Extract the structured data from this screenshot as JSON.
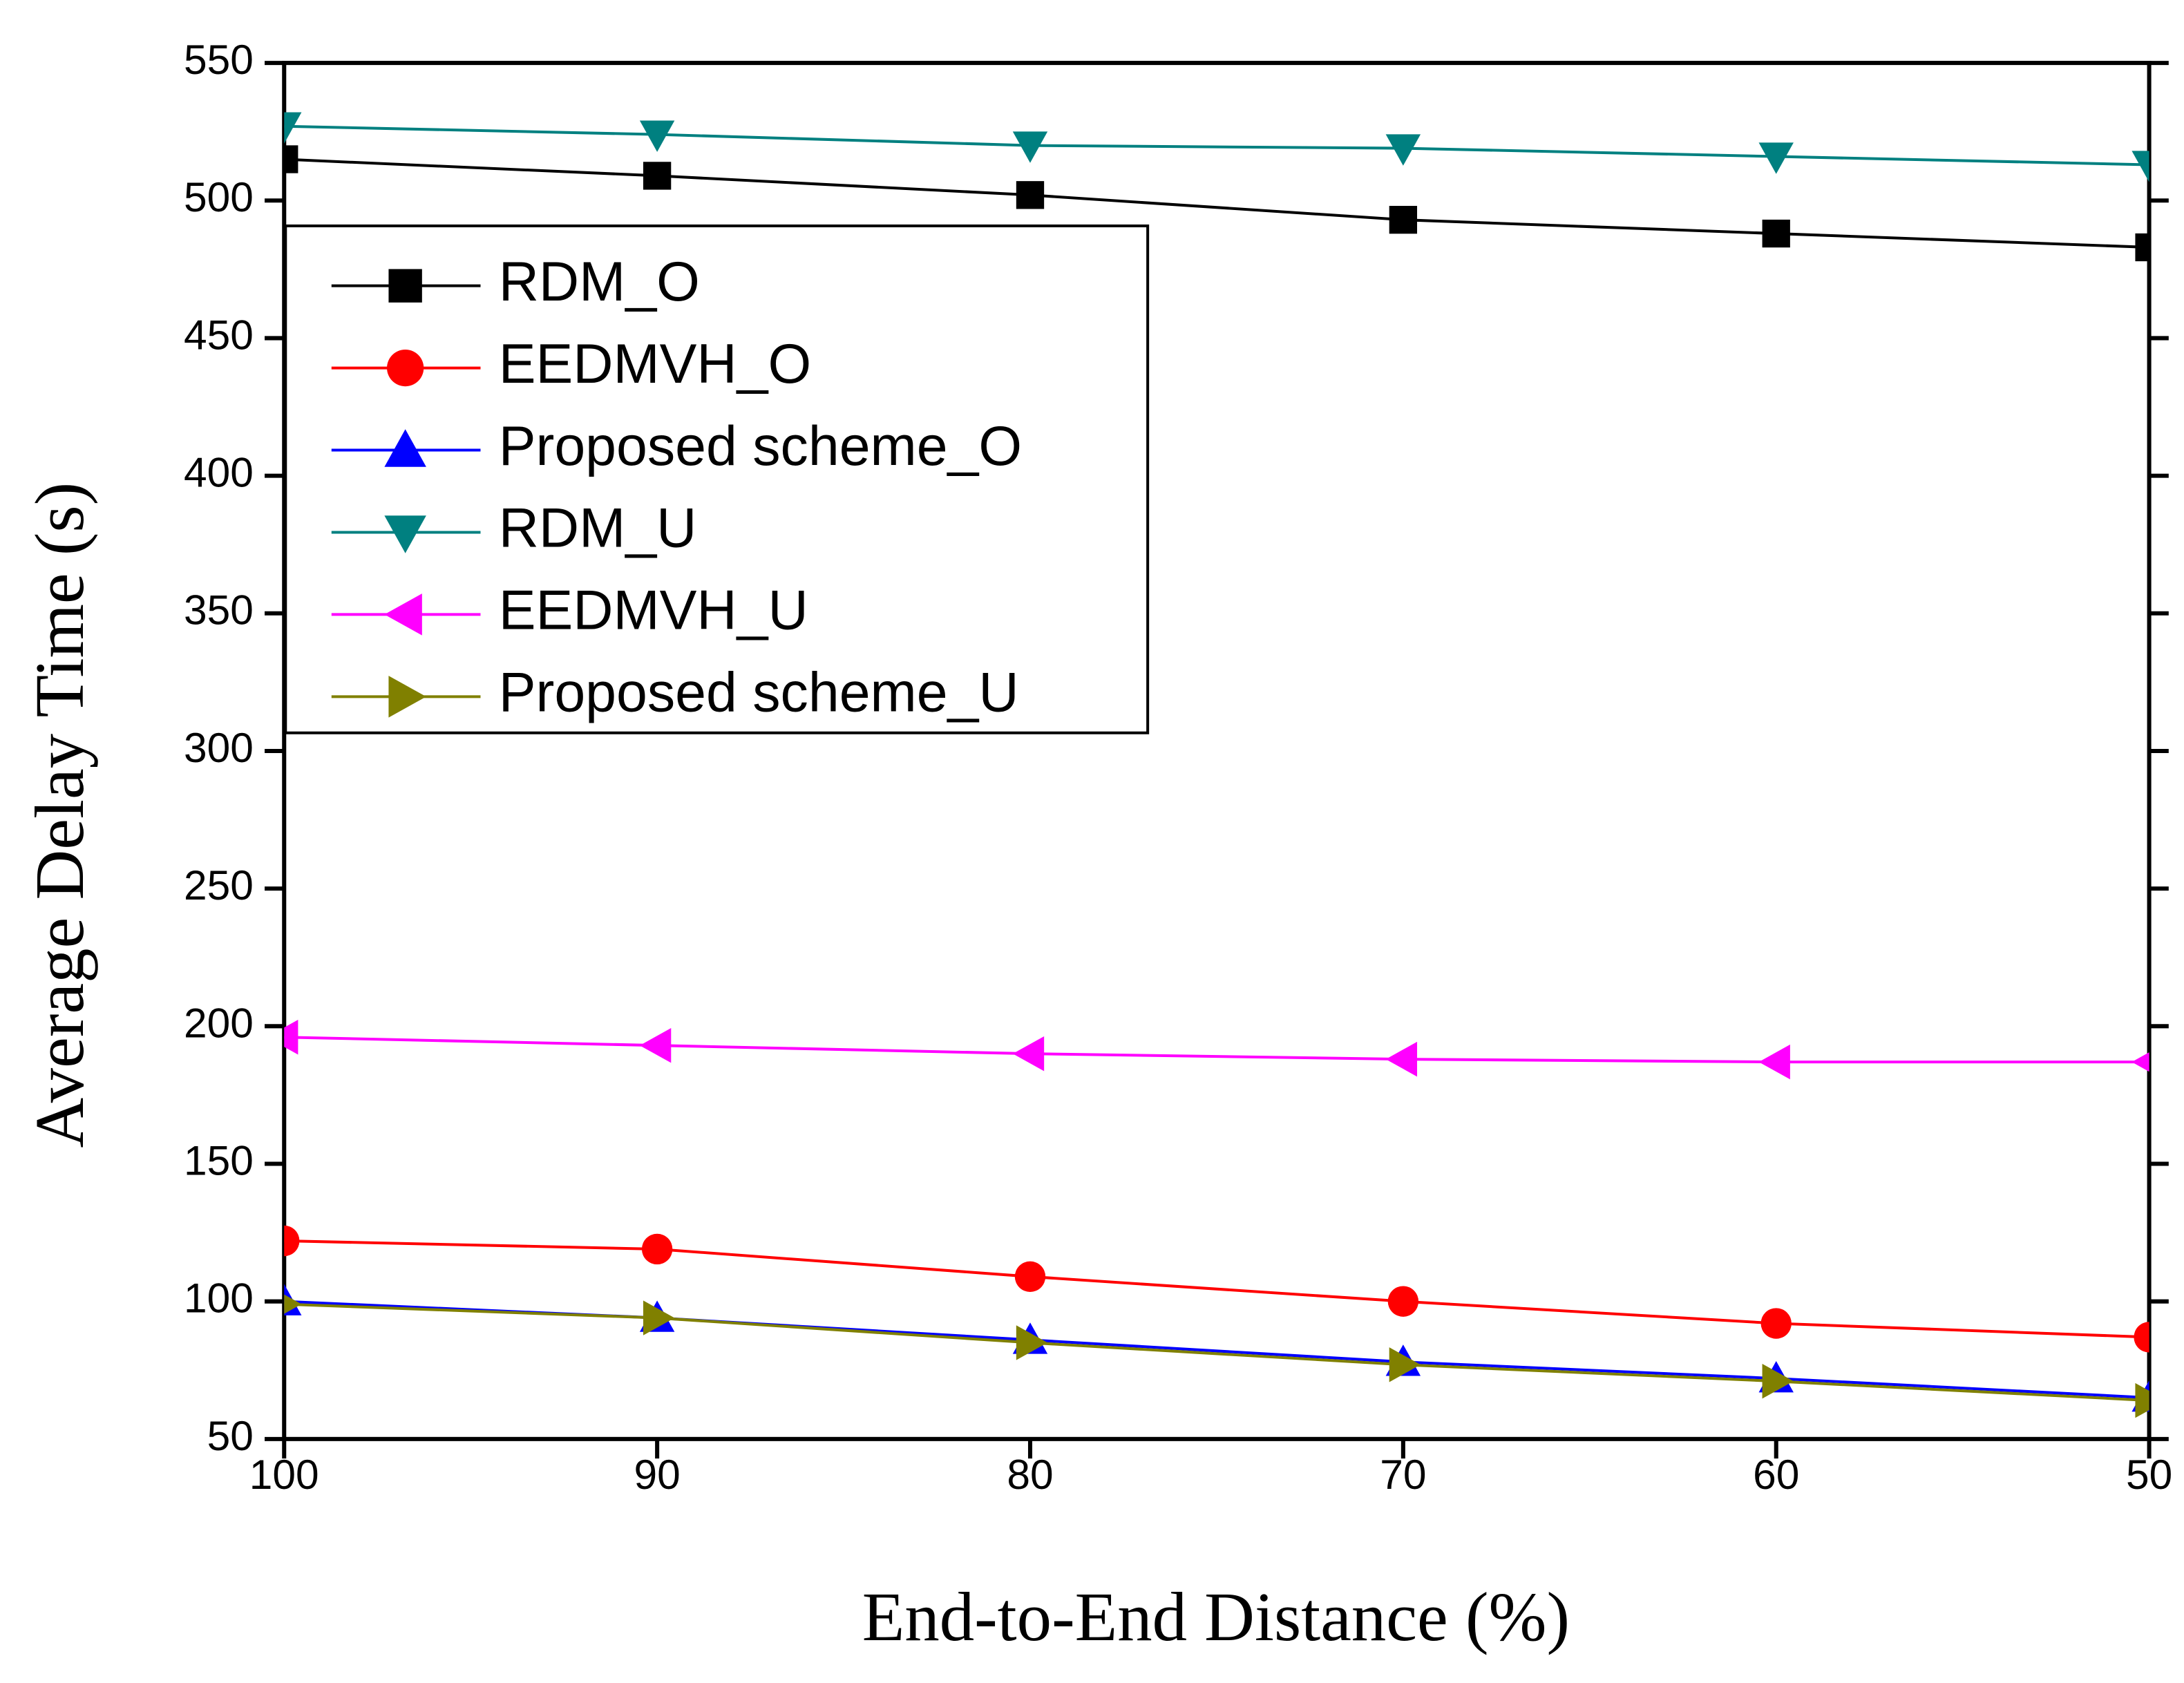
{
  "chart_data": {
    "type": "line",
    "x_label": "End-to-End Distance (%)",
    "y_label": "Average Delay Time (s)",
    "x": [
      100,
      90,
      80,
      70,
      60,
      50
    ],
    "series": [
      {
        "name": "RDM_O",
        "color": "#000000",
        "marker": "square",
        "values": [
          515,
          509,
          502,
          493,
          488,
          483
        ]
      },
      {
        "name": "EEDMVH_O",
        "color": "#ff0000",
        "marker": "circle",
        "values": [
          122,
          119,
          109,
          100,
          92,
          87
        ]
      },
      {
        "name": "Proposed scheme_O",
        "color": "#0000ff",
        "marker": "triangle-up",
        "values": [
          100,
          94,
          86,
          78,
          72,
          65
        ]
      },
      {
        "name": "RDM_U",
        "color": "#008080",
        "marker": "triangle-down",
        "values": [
          527,
          524,
          520,
          519,
          516,
          513
        ]
      },
      {
        "name": "EEDMVH_U",
        "color": "#ff00ff",
        "marker": "triangle-left",
        "values": [
          196,
          193,
          190,
          188,
          187,
          187
        ]
      },
      {
        "name": "Proposed scheme_U",
        "color": "#808000",
        "marker": "triangle-right",
        "values": [
          99,
          94,
          85,
          77,
          71,
          64
        ]
      }
    ],
    "xlim": [
      100,
      50
    ],
    "xticks": [
      100,
      90,
      80,
      70,
      60,
      50
    ],
    "ylim": [
      50,
      550
    ],
    "yticks": [
      50,
      100,
      150,
      200,
      250,
      300,
      350,
      400,
      450,
      500,
      550
    ],
    "legend": "upper left",
    "grid": false
  }
}
